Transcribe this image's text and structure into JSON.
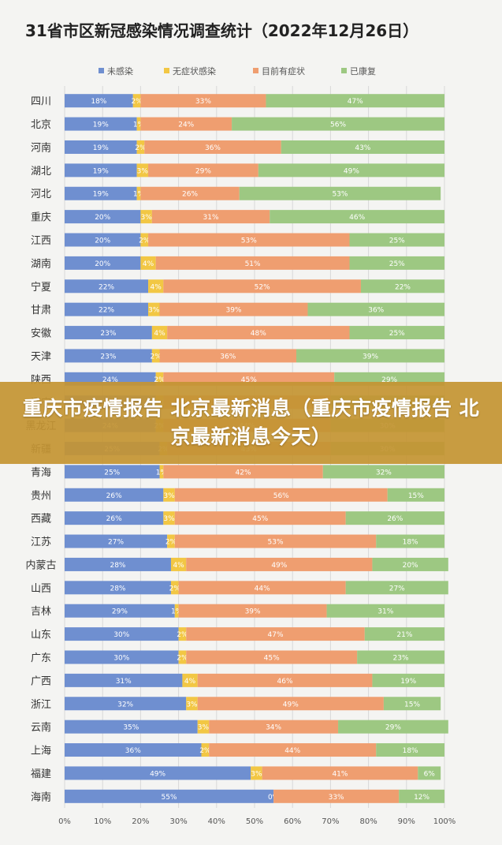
{
  "chart_data": {
    "type": "bar",
    "orientation": "horizontal",
    "stacked": true,
    "title": "31省市区新冠感染情况调查统计（2022年12月26日）",
    "legend_position": "top",
    "grid": true,
    "xlim": [
      0,
      100
    ],
    "x_ticks": [
      "0%",
      "10%",
      "20%",
      "30%",
      "40%",
      "50%",
      "60%",
      "70%",
      "80%",
      "90%",
      "100%"
    ],
    "categories": [
      "四川",
      "北京",
      "河南",
      "湖北",
      "河北",
      "重庆",
      "江西",
      "湖南",
      "宁夏",
      "甘肃",
      "安徽",
      "天津",
      "陕西",
      "辽宁",
      "黑龙江",
      "新疆",
      "青海",
      "贵州",
      "西藏",
      "江苏",
      "内蒙古",
      "山西",
      "吉林",
      "山东",
      "广东",
      "广西",
      "浙江",
      "云南",
      "上海",
      "福建",
      "海南"
    ],
    "series": [
      {
        "name": "未感染",
        "color": "#6f8fd0",
        "values": [
          18,
          19,
          19,
          19,
          19,
          20,
          20,
          20,
          22,
          22,
          23,
          23,
          24,
          24,
          24,
          25,
          25,
          26,
          26,
          27,
          28,
          28,
          29,
          30,
          30,
          31,
          32,
          35,
          36,
          49,
          55
        ]
      },
      {
        "name": "无症状感染",
        "color": "#f2c744",
        "values": [
          2,
          1,
          2,
          3,
          1,
          3,
          2,
          4,
          4,
          3,
          4,
          2,
          2,
          2,
          2,
          2,
          1,
          3,
          3,
          2,
          4,
          2,
          1,
          2,
          2,
          4,
          3,
          3,
          2,
          3,
          0
        ]
      },
      {
        "name": "目前有症状",
        "color": "#ef9e70",
        "values": [
          33,
          24,
          36,
          29,
          26,
          31,
          53,
          51,
          52,
          39,
          48,
          36,
          45,
          44,
          44,
          43,
          42,
          56,
          45,
          53,
          49,
          44,
          39,
          47,
          45,
          46,
          49,
          34,
          44,
          41,
          33
        ]
      },
      {
        "name": "已康复",
        "color": "#9dc882",
        "values": [
          47,
          56,
          43,
          49,
          53,
          46,
          25,
          25,
          22,
          36,
          25,
          39,
          29,
          30,
          30,
          30,
          32,
          15,
          26,
          18,
          20,
          27,
          31,
          21,
          23,
          19,
          15,
          29,
          18,
          6,
          12
        ]
      }
    ]
  },
  "banner": {
    "text": "重庆市疫情报告 北京最新消息（重庆市疫情报告 北京最新消息今天）"
  }
}
